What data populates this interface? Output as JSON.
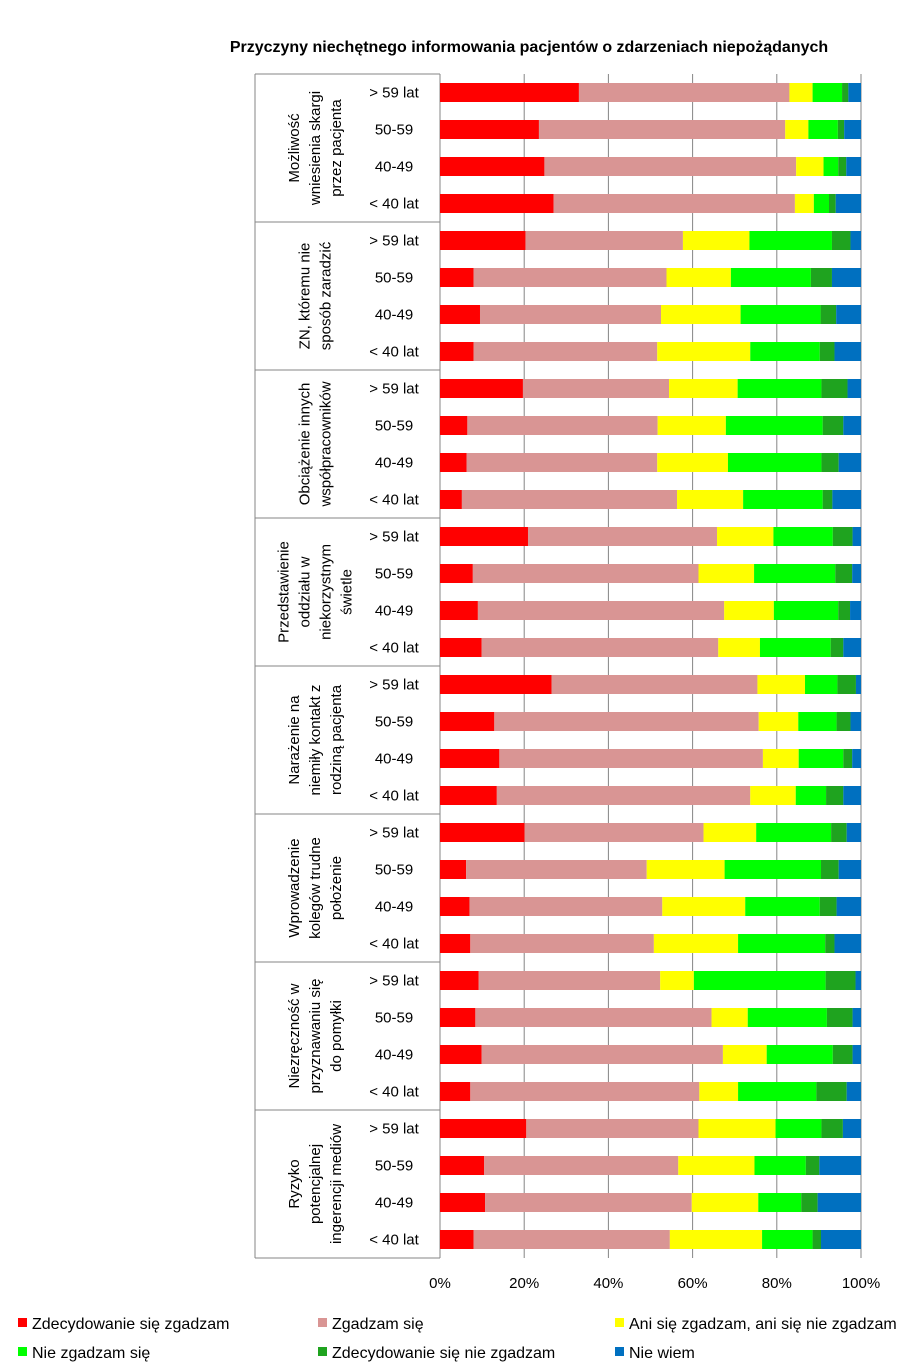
{
  "chart_data": {
    "type": "bar",
    "orientation": "horizontal-stacked-100",
    "title": "Przyczyny  niechętnego informowania pacjentów o zdarzeniach niepożądanych",
    "x_ticks": [
      "0%",
      "20%",
      "40%",
      "60%",
      "80%",
      "100%"
    ],
    "xlim": [
      0,
      100
    ],
    "grid": true,
    "legend_position": "bottom",
    "series_names": [
      "Zdecydowanie się zgadzam",
      "Zgadzam się",
      "Ani się zgadzam, ani się nie zgadzam",
      "Nie zgadzam się",
      "Zdecydowanie się nie zgadzam",
      "Nie wiem"
    ],
    "series_colors": [
      "#ff0000",
      "#d99594",
      "#ffff00",
      "#00ff00",
      "#1fa31f",
      "#0070c0"
    ],
    "groups": [
      {
        "label": [
          "Możliwość",
          "wniesienia skargi",
          "przez pacjenta"
        ],
        "rows": [
          {
            "label": "> 59 lat",
            "values": [
              33,
              50,
              5.5,
              7,
              1.5,
              3
            ]
          },
          {
            "label": "50-59",
            "values": [
              23.5,
              58.5,
              5.5,
              7,
              1.5,
              4
            ]
          },
          {
            "label": "40-49",
            "values": [
              24.8,
              59.8,
              6.5,
              3.5,
              1.9,
              3.5
            ]
          },
          {
            "label": "< 40 lat",
            "values": [
              27,
              57.3,
              4.5,
              3.6,
              1.6,
              6
            ]
          }
        ]
      },
      {
        "label": [
          "ZN, któremu nie",
          "sposób zaradzić"
        ],
        "rows": [
          {
            "label": "> 59 lat",
            "values": [
              20.3,
              37.4,
              15.8,
              19.6,
              4.4,
              2.5
            ]
          },
          {
            "label": "50-59",
            "values": [
              8,
              45.8,
              15.3,
              19,
              5,
              6.9
            ]
          },
          {
            "label": "40-49",
            "values": [
              9.5,
              43,
              18.9,
              19,
              3.7,
              5.9
            ]
          },
          {
            "label": "< 40 lat",
            "values": [
              8,
              43.6,
              22.1,
              16.5,
              3.5,
              6.3
            ]
          }
        ]
      },
      {
        "label": [
          "Obciążenie innych",
          "współpracowników"
        ],
        "rows": [
          {
            "label": "> 59 lat",
            "values": [
              19.7,
              34.7,
              16.3,
              19.9,
              6.2,
              3.2
            ]
          },
          {
            "label": "50-59",
            "values": [
              6.5,
              45.2,
              16.2,
              23,
              4.9,
              4.2
            ]
          },
          {
            "label": "40-49",
            "values": [
              6.3,
              45.3,
              16.8,
              22.2,
              4.1,
              5.3
            ]
          },
          {
            "label": "< 40 lat",
            "values": [
              5.2,
              51.1,
              15.7,
              18.9,
              2.3,
              6.8
            ]
          }
        ]
      },
      {
        "label": [
          "Przedstawienie",
          "oddziału w",
          "niekorzystnym",
          "świetle"
        ],
        "rows": [
          {
            "label": "> 59 lat",
            "values": [
              20.9,
              44.9,
              13.4,
              14.1,
              4.7,
              2
            ]
          },
          {
            "label": "50-59",
            "values": [
              7.8,
              53.6,
              13.2,
              19.3,
              4,
              2.1
            ]
          },
          {
            "label": "40-49",
            "values": [
              9,
              58.5,
              11.8,
              15.3,
              2.8,
              2.6
            ]
          },
          {
            "label": "< 40 lat",
            "values": [
              9.9,
              56.2,
              9.9,
              16.8,
              3,
              4.2
            ]
          }
        ]
      },
      {
        "label": [
          "Narażenie na",
          "niemiły kontakt z",
          "rodziną pacjenta"
        ],
        "rows": [
          {
            "label": "> 59 lat",
            "values": [
              26.5,
              48.9,
              11.3,
              7.7,
              4.4,
              1.2
            ]
          },
          {
            "label": "50-59",
            "values": [
              12.9,
              62.8,
              9.4,
              9.1,
              3.3,
              2.5
            ]
          },
          {
            "label": "40-49",
            "values": [
              14.1,
              62.6,
              8.5,
              10.6,
              2.1,
              2.1
            ]
          },
          {
            "label": "< 40 lat",
            "values": [
              13.5,
              60.2,
              10.8,
              7.2,
              4.1,
              4.2
            ]
          }
        ]
      },
      {
        "label": [
          "Wprowadzenie",
          "kolegów  trudne",
          "położenie"
        ],
        "rows": [
          {
            "label": "> 59 lat",
            "values": [
              20.1,
              42.5,
              12.5,
              17.8,
              3.7,
              3.4
            ]
          },
          {
            "label": "50-59",
            "values": [
              6.2,
              42.9,
              18.5,
              22.9,
              4.2,
              5.3
            ]
          },
          {
            "label": "40-49",
            "values": [
              7,
              45.8,
              19.7,
              17.7,
              4,
              5.8
            ]
          },
          {
            "label": "< 40 lat",
            "values": [
              7.2,
              43.6,
              20,
              20.7,
              2.2,
              6.3
            ]
          }
        ]
      },
      {
        "label": [
          "Niezręczność w",
          "przyznawaniu się",
          "do pomyłki"
        ],
        "rows": [
          {
            "label": "> 59 lat",
            "values": [
              9.2,
              43.1,
              8,
              31.3,
              7.1,
              1.3
            ]
          },
          {
            "label": "50-59",
            "values": [
              8.4,
              56.1,
              8.6,
              18.8,
              6.1,
              2
            ]
          },
          {
            "label": "40-49",
            "values": [
              9.9,
              57.3,
              10.4,
              15.7,
              4.7,
              2
            ]
          },
          {
            "label": "< 40 lat",
            "values": [
              7.2,
              54.4,
              9.2,
              18.6,
              7.2,
              3.4
            ]
          }
        ]
      },
      {
        "label": [
          "Ryzyko",
          "potencjalnej",
          "ingerencji mediów"
        ],
        "rows": [
          {
            "label": "> 59 lat",
            "values": [
              20.5,
              40.9,
              18.3,
              10.9,
              5.1,
              4.3
            ]
          },
          {
            "label": "50-59",
            "values": [
              10.5,
              46.1,
              18.1,
              12.2,
              3.2,
              9.9
            ]
          },
          {
            "label": "40-49",
            "values": [
              10.7,
              49.1,
              15.8,
              10.2,
              3.9,
              10.3
            ]
          },
          {
            "label": "< 40 lat",
            "values": [
              8,
              46.6,
              21.9,
              12,
              2,
              9.5
            ]
          }
        ]
      }
    ]
  }
}
